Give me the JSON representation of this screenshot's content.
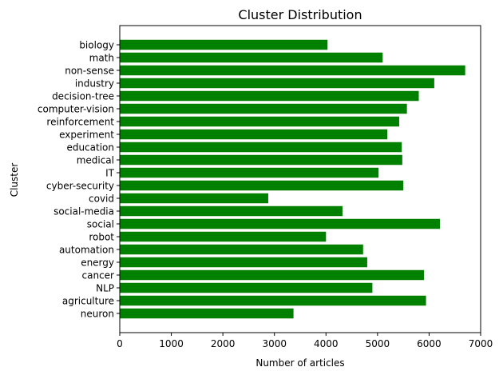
{
  "chart_data": {
    "type": "bar",
    "orientation": "horizontal",
    "title": "Cluster Distribution",
    "xlabel": "Number of articles",
    "ylabel": "Cluster",
    "xlim": [
      0,
      7000
    ],
    "xticks": [
      0,
      1000,
      2000,
      3000,
      4000,
      5000,
      6000,
      7000
    ],
    "bar_color": "#008000",
    "grid": false,
    "categories": [
      "biology",
      "math",
      "non-sense",
      "industry",
      "decision-tree",
      "computer-vision",
      "reinforcement",
      "experiment",
      "education",
      "medical",
      "IT",
      "cyber-security",
      "covid",
      "social-media",
      "social",
      "robot",
      "automation",
      "energy",
      "cancer",
      "NLP",
      "agriculture",
      "neuron"
    ],
    "values": [
      4030,
      5100,
      6700,
      6100,
      5800,
      5570,
      5420,
      5190,
      5470,
      5480,
      5020,
      5500,
      2880,
      4320,
      6210,
      4000,
      4720,
      4800,
      5900,
      4900,
      5940,
      3370
    ]
  }
}
